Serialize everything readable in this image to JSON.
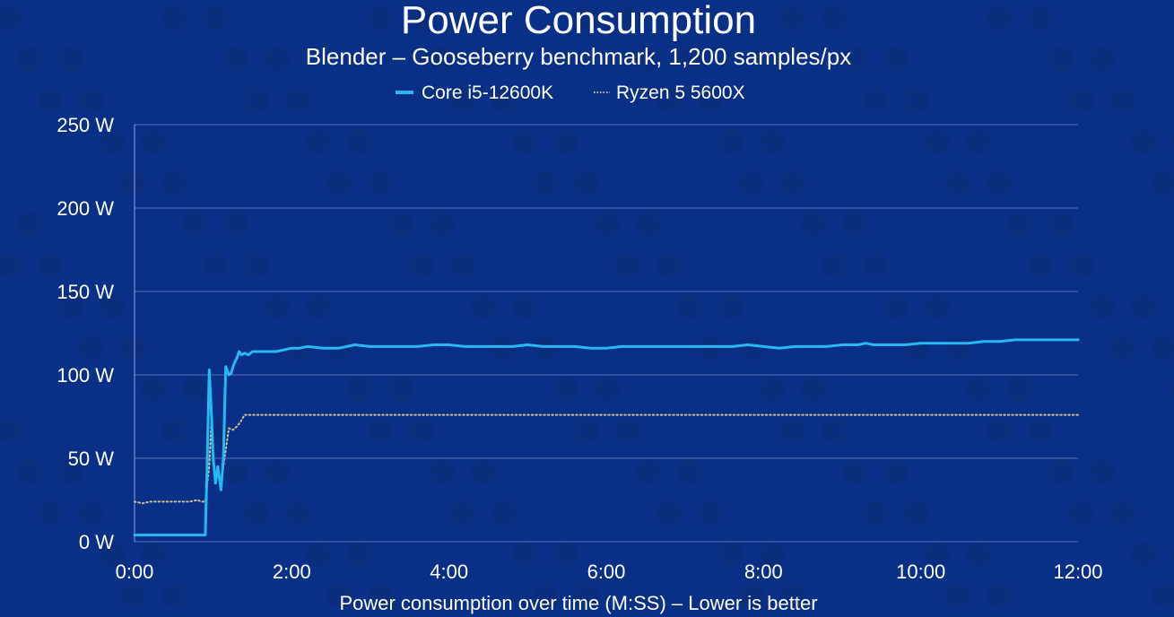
{
  "colors": {
    "background": "#0a2f87",
    "series_intel": "#2ab7f2",
    "series_amd": "#c9c49a",
    "grid": "#6f86c9",
    "text": "#ffffff"
  },
  "chart_data": {
    "type": "line",
    "title": "Power Consumption",
    "subtitle": "Blender – Gooseberry benchmark, 1,200 samples/px",
    "xlabel": "Power consumption over time (M:SS) – Lower is better",
    "ylabel": "",
    "x_unit": "minutes",
    "xlim": [
      0,
      12
    ],
    "ylim": [
      0,
      250
    ],
    "x_ticks": [
      0,
      2,
      4,
      6,
      8,
      10,
      12
    ],
    "x_tick_labels": [
      "0:00",
      "2:00",
      "4:00",
      "6:00",
      "8:00",
      "10:00",
      "12:00"
    ],
    "y_ticks": [
      0,
      50,
      100,
      150,
      200,
      250
    ],
    "y_tick_labels": [
      "0 W",
      "50 W",
      "100 W",
      "150 W",
      "200 W",
      "250 W"
    ],
    "grid": true,
    "legend_position": "top-center",
    "series": [
      {
        "name": "Core i5-12600K",
        "style": "solid",
        "x": [
          0,
          0.2,
          0.4,
          0.6,
          0.8,
          0.9,
          0.92,
          0.95,
          0.98,
          1.0,
          1.03,
          1.06,
          1.1,
          1.13,
          1.16,
          1.2,
          1.23,
          1.26,
          1.3,
          1.33,
          1.36,
          1.4,
          1.45,
          1.5,
          1.6,
          1.7,
          1.8,
          1.9,
          2.0,
          2.1,
          2.2,
          2.4,
          2.6,
          2.7,
          2.8,
          3.0,
          3.2,
          3.4,
          3.6,
          3.8,
          4.0,
          4.2,
          4.4,
          4.6,
          4.8,
          5.0,
          5.2,
          5.4,
          5.6,
          5.8,
          6.0,
          6.2,
          6.4,
          6.6,
          6.8,
          7.0,
          7.2,
          7.4,
          7.6,
          7.8,
          8.0,
          8.2,
          8.4,
          8.6,
          8.8,
          9.0,
          9.2,
          9.3,
          9.4,
          9.6,
          9.8,
          10.0,
          10.2,
          10.4,
          10.6,
          10.8,
          11.0,
          11.2,
          11.4,
          11.6,
          11.8,
          12.0
        ],
        "values": [
          4,
          4,
          4,
          4,
          4,
          4,
          40,
          103,
          75,
          50,
          35,
          45,
          31,
          50,
          105,
          100,
          101,
          106,
          110,
          114,
          112,
          113,
          112,
          114,
          114,
          114,
          114,
          115,
          116,
          116,
          117,
          116,
          116,
          117,
          118,
          117,
          117,
          117,
          117,
          118,
          118,
          117,
          117,
          117,
          117,
          118,
          117,
          117,
          117,
          116,
          116,
          117,
          117,
          117,
          117,
          117,
          117,
          117,
          117,
          118,
          117,
          116,
          117,
          117,
          117,
          118,
          118,
          119,
          118,
          118,
          118,
          119,
          119,
          119,
          119,
          120,
          120,
          121,
          121,
          121,
          121,
          121
        ]
      },
      {
        "name": "Ryzen 5 5600X",
        "style": "dotted",
        "x": [
          0,
          0.1,
          0.2,
          0.4,
          0.6,
          0.7,
          0.8,
          0.85,
          0.9,
          0.95,
          0.98,
          1.0,
          1.03,
          1.06,
          1.1,
          1.13,
          1.16,
          1.2,
          1.25,
          1.3,
          1.35,
          1.4,
          1.6,
          2.0,
          3.0,
          4.0,
          5.0,
          6.0,
          7.0,
          8.0,
          9.0,
          10.0,
          11.0,
          12.0
        ],
        "values": [
          24,
          23,
          24,
          24,
          24,
          24,
          25,
          24,
          24,
          45,
          75,
          50,
          35,
          42,
          34,
          45,
          55,
          68,
          67,
          69,
          72,
          76,
          76,
          76,
          76,
          76,
          76,
          76,
          76,
          76,
          76,
          76,
          76,
          76
        ]
      }
    ]
  }
}
